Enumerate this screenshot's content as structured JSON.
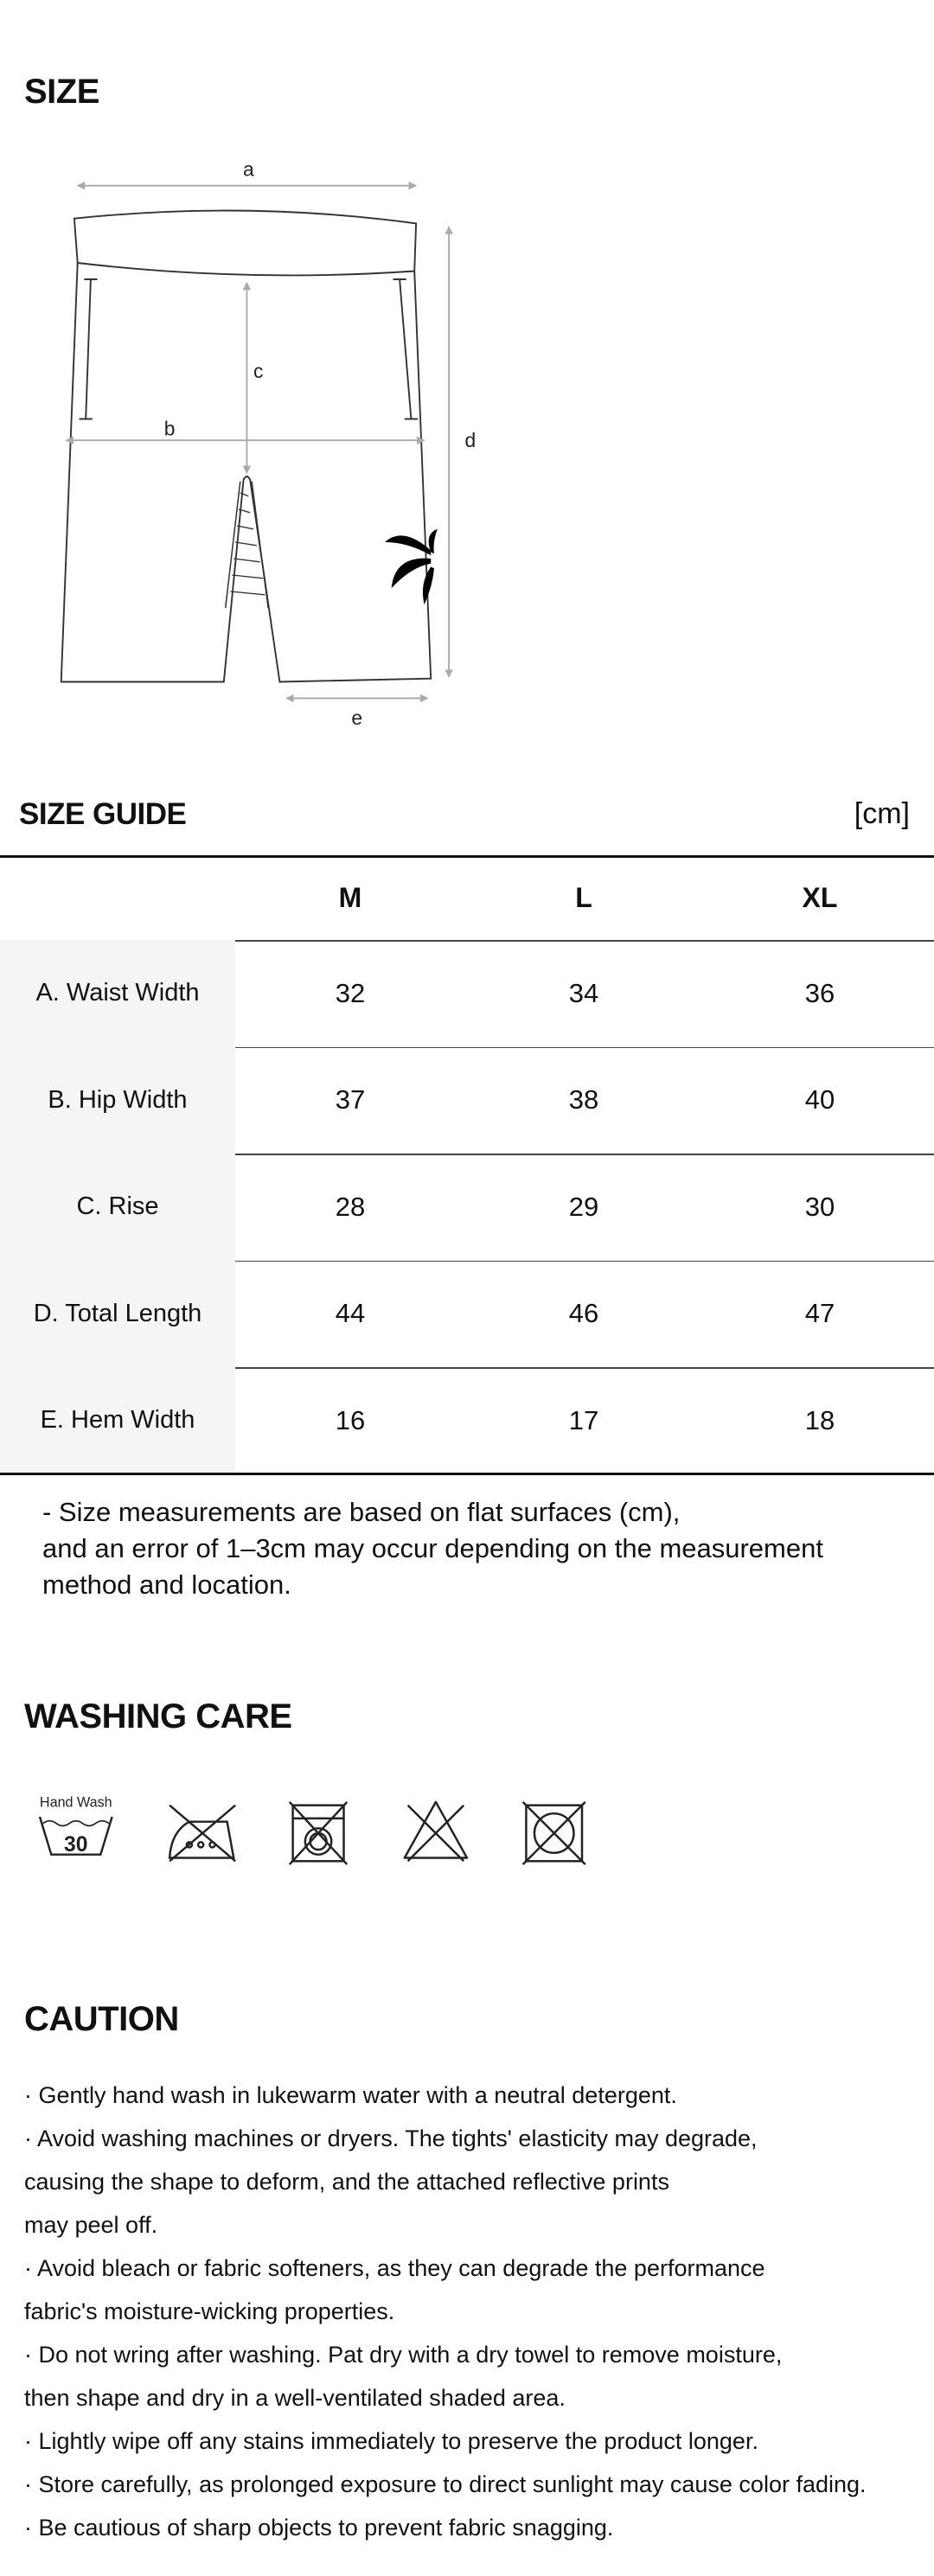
{
  "size_section": {
    "title": "SIZE",
    "diagram_labels": [
      "a",
      "b",
      "c",
      "d",
      "e"
    ]
  },
  "size_guide": {
    "title": "SIZE GUIDE",
    "unit": "[cm]",
    "columns": [
      "M",
      "L",
      "XL"
    ],
    "rows": [
      {
        "label": "A. Waist Width",
        "values": [
          32,
          34,
          36
        ]
      },
      {
        "label": "B. Hip Width",
        "values": [
          37,
          38,
          40
        ]
      },
      {
        "label": "C. Rise",
        "values": [
          28,
          29,
          30
        ]
      },
      {
        "label": "D. Total Length",
        "values": [
          44,
          46,
          47
        ]
      },
      {
        "label": "E. Hem Width",
        "values": [
          16,
          17,
          18
        ]
      }
    ],
    "note": [
      "- Size measurements are based on flat surfaces (cm),",
      "and an error of 1–3cm may occur depending on the measurement",
      "method and location."
    ]
  },
  "washing_care": {
    "title": "WASHING CARE",
    "hand_wash_label": "Hand Wash",
    "hand_wash_temp": 30
  },
  "caution": {
    "title": "CAUTION",
    "lines": [
      "· Gently hand wash in lukewarm water with a neutral detergent.",
      "· Avoid washing machines or dryers. The tights' elasticity may degrade,",
      "causing the shape to deform, and the attached reflective prints",
      "may peel off.",
      "· Avoid bleach or fabric softeners, as they can degrade the performance",
      "fabric's moisture-wicking properties.",
      "· Do not wring after washing. Pat dry with a dry towel to remove moisture,",
      "then shape and dry in a well-ventilated shaded area.",
      "· Lightly wipe off any stains immediately to preserve the product longer.",
      "· Store carefully, as prolonged exposure to direct sunlight may cause color fading.",
      "· Be cautious of sharp objects to prevent fabric snagging."
    ]
  }
}
